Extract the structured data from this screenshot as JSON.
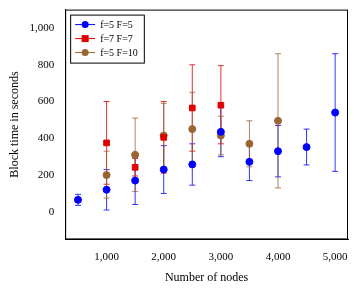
{
  "chart_data": {
    "type": "scatter",
    "x_label": "Number of nodes",
    "y_label": "Block time in seconds",
    "xlim": [
      275,
      5225
    ],
    "xticks": [
      {
        "value": 1000,
        "label": "1,000"
      },
      {
        "value": 2000,
        "label": "2,000"
      },
      {
        "value": 3000,
        "label": "3,000"
      },
      {
        "value": 4000,
        "label": "4,000"
      },
      {
        "value": 5000,
        "label": "5,000"
      }
    ],
    "ylim": [
      -150,
      1100
    ],
    "yticks": [
      0,
      200,
      400,
      600,
      800,
      {
        "value": 1000,
        "label": "1,000"
      }
    ],
    "grid": false,
    "legend": "top-left",
    "series": [
      {
        "name": "f=5 F=5",
        "color": "#0000ff",
        "marker": "circle",
        "x": [
          500,
          1000,
          1500,
          2000,
          2500,
          3000,
          3500,
          4000,
          4500,
          5000
        ],
        "values": [
          65,
          120,
          170,
          230,
          258,
          435,
          272,
          330,
          352,
          540
        ],
        "y_low": [
          35,
          10,
          40,
          100,
          145,
          300,
          170,
          190,
          255,
          220
        ],
        "y_high": [
          95,
          230,
          300,
          360,
          370,
          570,
          375,
          470,
          450,
          860
        ]
      },
      {
        "name": "f=7 F=7",
        "color": "#e00000",
        "marker": "square",
        "x": [
          1000,
          1500,
          2000,
          2500,
          3000
        ],
        "values": [
          375,
          242,
          405,
          565,
          580
        ],
        "y_low": [
          150,
          195,
          210,
          330,
          370
        ],
        "y_high": [
          600,
          290,
          600,
          800,
          795
        ]
      },
      {
        "name": "f=5 F=10",
        "color": "#996633",
        "marker": "circle",
        "x": [
          1000,
          1500,
          2000,
          2500,
          3000,
          3500,
          4000
        ],
        "values": [
          200,
          310,
          415,
          450,
          415,
          370,
          495
        ],
        "y_low": [
          75,
          110,
          230,
          250,
          310,
          245,
          130
        ],
        "y_high": [
          330,
          510,
          590,
          650,
          520,
          495,
          860
        ]
      }
    ]
  }
}
